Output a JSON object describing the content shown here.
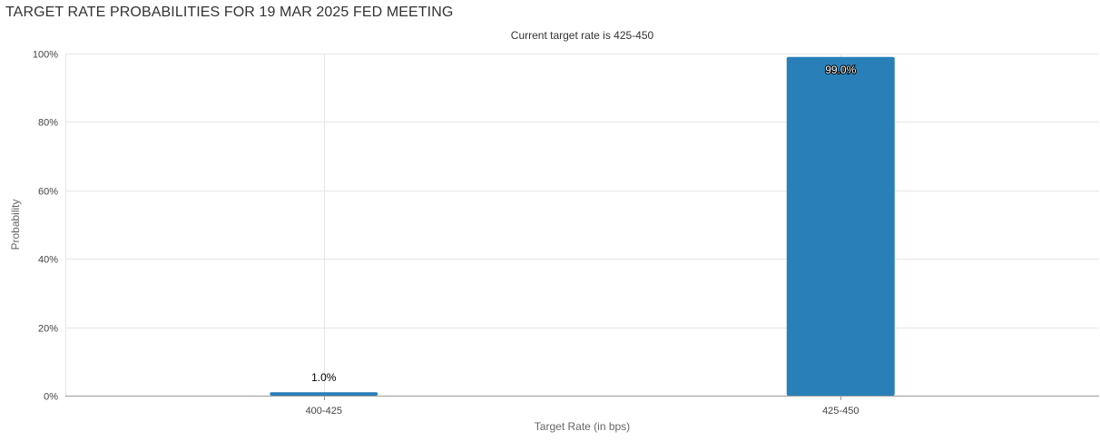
{
  "page": {
    "title": "TARGET RATE PROBABILITIES FOR 19 MAR 2025 FED MEETING"
  },
  "colors": {
    "bar": "#2980b9",
    "grid": "#e6e6e6",
    "axis": "#999999"
  },
  "chart_data": {
    "type": "bar",
    "title": "",
    "subtitle": "Current target rate is 425-450",
    "xlabel": "Target Rate (in bps)",
    "ylabel": "Probability",
    "categories": [
      "400-425",
      "425-450"
    ],
    "values": [
      1.0,
      99.0
    ],
    "data_labels": [
      "1.0%",
      "99.0%"
    ],
    "ylim": [
      0,
      100
    ],
    "y_ticks": [
      0,
      20,
      40,
      60,
      80,
      100
    ],
    "y_tick_labels": [
      "0%",
      "20%",
      "40%",
      "60%",
      "80%",
      "100%"
    ],
    "grid": true,
    "legend": "none"
  }
}
